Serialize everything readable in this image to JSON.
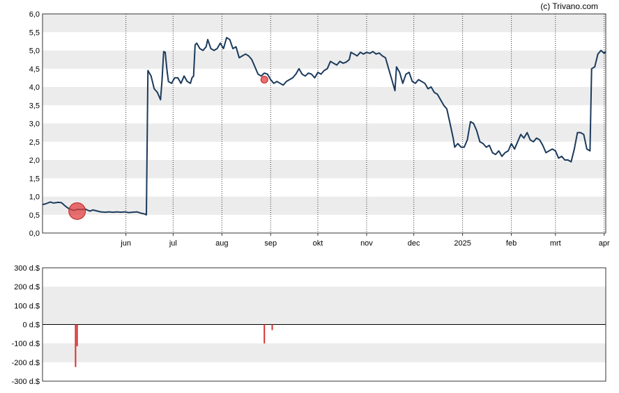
{
  "copyright": "(c) Trivano.com",
  "chart_data": [
    {
      "type": "line",
      "ylim": [
        0,
        6
      ],
      "y_ticks": [
        "0,0",
        "0,5",
        "1,0",
        "1,5",
        "2,0",
        "2,5",
        "3,0",
        "3,5",
        "4,0",
        "4,5",
        "5,0",
        "5,5",
        "6,0"
      ],
      "x_ticks": [
        {
          "label": "jun",
          "date": "2024-06-01"
        },
        {
          "label": "jul",
          "date": "2024-07-01"
        },
        {
          "label": "aug",
          "date": "2024-08-01"
        },
        {
          "label": "sep",
          "date": "2024-09-01"
        },
        {
          "label": "okt",
          "date": "2024-10-01"
        },
        {
          "label": "nov",
          "date": "2024-11-01"
        },
        {
          "label": "dec",
          "date": "2024-12-01"
        },
        {
          "label": "2025",
          "date": "2025-01-01"
        },
        {
          "label": "feb",
          "date": "2025-02-01"
        },
        {
          "label": "mrt",
          "date": "2025-03-01"
        },
        {
          "label": "apr",
          "date": "2025-04-01"
        }
      ],
      "xlim": [
        "2024-04-09",
        "2025-04-02"
      ],
      "grid": "alternating horizontal bands, dotted vertical month lines",
      "line_color": "#1a3a5c",
      "series": [
        {
          "points": [
            [
              "2024-04-09",
              0.78
            ],
            [
              "2024-04-11",
              0.8
            ],
            [
              "2024-04-14",
              0.85
            ],
            [
              "2024-04-16",
              0.82
            ],
            [
              "2024-04-19",
              0.84
            ],
            [
              "2024-04-21",
              0.83
            ],
            [
              "2024-04-24",
              0.72
            ],
            [
              "2024-04-26",
              0.66
            ],
            [
              "2024-04-29",
              0.62
            ],
            [
              "2024-05-01",
              0.65
            ],
            [
              "2024-05-04",
              0.64
            ],
            [
              "2024-05-06",
              0.66
            ],
            [
              "2024-05-09",
              0.6
            ],
            [
              "2024-05-11",
              0.63
            ],
            [
              "2024-05-14",
              0.6
            ],
            [
              "2024-05-16",
              0.58
            ],
            [
              "2024-05-19",
              0.57
            ],
            [
              "2024-05-21",
              0.58
            ],
            [
              "2024-05-24",
              0.57
            ],
            [
              "2024-05-26",
              0.58
            ],
            [
              "2024-05-29",
              0.57
            ],
            [
              "2024-05-31",
              0.58
            ],
            [
              "2024-06-03",
              0.56
            ],
            [
              "2024-06-05",
              0.57
            ],
            [
              "2024-06-08",
              0.58
            ],
            [
              "2024-06-10",
              0.55
            ],
            [
              "2024-06-13",
              0.52
            ],
            [
              "2024-06-14",
              0.5
            ],
            [
              "2024-06-15",
              4.45
            ],
            [
              "2024-06-17",
              4.3
            ],
            [
              "2024-06-19",
              3.95
            ],
            [
              "2024-06-21",
              3.85
            ],
            [
              "2024-06-23",
              3.65
            ],
            [
              "2024-06-24",
              4.2
            ],
            [
              "2024-06-25",
              4.97
            ],
            [
              "2024-06-26",
              4.95
            ],
            [
              "2024-06-27",
              4.5
            ],
            [
              "2024-06-28",
              4.15
            ],
            [
              "2024-06-30",
              4.1
            ],
            [
              "2024-07-02",
              4.25
            ],
            [
              "2024-07-04",
              4.25
            ],
            [
              "2024-07-06",
              4.1
            ],
            [
              "2024-07-08",
              4.3
            ],
            [
              "2024-07-10",
              4.15
            ],
            [
              "2024-07-12",
              4.1
            ],
            [
              "2024-07-13",
              4.25
            ],
            [
              "2024-07-14",
              4.3
            ],
            [
              "2024-07-15",
              5.15
            ],
            [
              "2024-07-16",
              5.2
            ],
            [
              "2024-07-18",
              5.05
            ],
            [
              "2024-07-20",
              5.0
            ],
            [
              "2024-07-22",
              5.1
            ],
            [
              "2024-07-23",
              5.3
            ],
            [
              "2024-07-25",
              5.05
            ],
            [
              "2024-07-27",
              5.0
            ],
            [
              "2024-07-29",
              5.05
            ],
            [
              "2024-07-31",
              5.2
            ],
            [
              "2024-08-02",
              5.05
            ],
            [
              "2024-08-04",
              5.35
            ],
            [
              "2024-08-06",
              5.3
            ],
            [
              "2024-08-08",
              5.05
            ],
            [
              "2024-08-10",
              5.1
            ],
            [
              "2024-08-12",
              4.8
            ],
            [
              "2024-08-14",
              4.85
            ],
            [
              "2024-08-16",
              4.9
            ],
            [
              "2024-08-18",
              4.85
            ],
            [
              "2024-08-20",
              4.75
            ],
            [
              "2024-08-22",
              4.55
            ],
            [
              "2024-08-24",
              4.35
            ],
            [
              "2024-08-26",
              4.3
            ],
            [
              "2024-08-28",
              4.38
            ],
            [
              "2024-08-30",
              4.35
            ],
            [
              "2024-09-01",
              4.2
            ],
            [
              "2024-09-03",
              4.1
            ],
            [
              "2024-09-05",
              4.15
            ],
            [
              "2024-09-07",
              4.1
            ],
            [
              "2024-09-09",
              4.05
            ],
            [
              "2024-09-11",
              4.15
            ],
            [
              "2024-09-13",
              4.2
            ],
            [
              "2024-09-15",
              4.25
            ],
            [
              "2024-09-17",
              4.35
            ],
            [
              "2024-09-19",
              4.5
            ],
            [
              "2024-09-21",
              4.35
            ],
            [
              "2024-09-23",
              4.3
            ],
            [
              "2024-09-25",
              4.38
            ],
            [
              "2024-09-27",
              4.35
            ],
            [
              "2024-09-29",
              4.25
            ],
            [
              "2024-10-01",
              4.4
            ],
            [
              "2024-10-03",
              4.35
            ],
            [
              "2024-10-05",
              4.45
            ],
            [
              "2024-10-07",
              4.5
            ],
            [
              "2024-10-09",
              4.7
            ],
            [
              "2024-10-11",
              4.65
            ],
            [
              "2024-10-13",
              4.6
            ],
            [
              "2024-10-15",
              4.7
            ],
            [
              "2024-10-17",
              4.65
            ],
            [
              "2024-10-19",
              4.68
            ],
            [
              "2024-10-21",
              4.75
            ],
            [
              "2024-10-22",
              4.95
            ],
            [
              "2024-10-24",
              4.9
            ],
            [
              "2024-10-26",
              4.85
            ],
            [
              "2024-10-28",
              4.95
            ],
            [
              "2024-10-30",
              4.9
            ],
            [
              "2024-11-01",
              4.95
            ],
            [
              "2024-11-03",
              4.92
            ],
            [
              "2024-11-05",
              4.97
            ],
            [
              "2024-11-07",
              4.9
            ],
            [
              "2024-11-09",
              4.93
            ],
            [
              "2024-11-11",
              4.85
            ],
            [
              "2024-11-13",
              4.8
            ],
            [
              "2024-11-15",
              4.5
            ],
            [
              "2024-11-17",
              4.2
            ],
            [
              "2024-11-19",
              3.9
            ],
            [
              "2024-11-20",
              4.55
            ],
            [
              "2024-11-22",
              4.4
            ],
            [
              "2024-11-24",
              4.1
            ],
            [
              "2024-11-26",
              4.35
            ],
            [
              "2024-11-28",
              4.4
            ],
            [
              "2024-11-30",
              4.15
            ],
            [
              "2024-12-02",
              4.1
            ],
            [
              "2024-12-04",
              4.2
            ],
            [
              "2024-12-06",
              4.15
            ],
            [
              "2024-12-08",
              4.1
            ],
            [
              "2024-12-10",
              3.95
            ],
            [
              "2024-12-12",
              4.0
            ],
            [
              "2024-12-14",
              3.85
            ],
            [
              "2024-12-16",
              3.8
            ],
            [
              "2024-12-18",
              3.65
            ],
            [
              "2024-12-20",
              3.5
            ],
            [
              "2024-12-22",
              3.4
            ],
            [
              "2024-12-24",
              3.0
            ],
            [
              "2024-12-26",
              2.6
            ],
            [
              "2024-12-27",
              2.35
            ],
            [
              "2024-12-29",
              2.45
            ],
            [
              "2024-12-31",
              2.35
            ],
            [
              "2025-01-02",
              2.35
            ],
            [
              "2025-01-04",
              2.55
            ],
            [
              "2025-01-06",
              3.05
            ],
            [
              "2025-01-08",
              3.0
            ],
            [
              "2025-01-10",
              2.8
            ],
            [
              "2025-01-12",
              2.5
            ],
            [
              "2025-01-14",
              2.45
            ],
            [
              "2025-01-16",
              2.35
            ],
            [
              "2025-01-18",
              2.4
            ],
            [
              "2025-01-20",
              2.2
            ],
            [
              "2025-01-22",
              2.15
            ],
            [
              "2025-01-24",
              2.25
            ],
            [
              "2025-01-26",
              2.1
            ],
            [
              "2025-01-28",
              2.2
            ],
            [
              "2025-01-30",
              2.25
            ],
            [
              "2025-02-01",
              2.45
            ],
            [
              "2025-02-03",
              2.3
            ],
            [
              "2025-02-05",
              2.5
            ],
            [
              "2025-02-07",
              2.7
            ],
            [
              "2025-02-09",
              2.6
            ],
            [
              "2025-02-11",
              2.75
            ],
            [
              "2025-02-13",
              2.55
            ],
            [
              "2025-02-15",
              2.5
            ],
            [
              "2025-02-17",
              2.6
            ],
            [
              "2025-02-19",
              2.55
            ],
            [
              "2025-02-21",
              2.4
            ],
            [
              "2025-02-23",
              2.2
            ],
            [
              "2025-02-25",
              2.25
            ],
            [
              "2025-02-27",
              2.3
            ],
            [
              "2025-03-01",
              2.25
            ],
            [
              "2025-03-03",
              2.05
            ],
            [
              "2025-03-05",
              2.1
            ],
            [
              "2025-03-07",
              2.0
            ],
            [
              "2025-03-09",
              2.0
            ],
            [
              "2025-03-11",
              1.95
            ],
            [
              "2025-03-13",
              2.3
            ],
            [
              "2025-03-15",
              2.75
            ],
            [
              "2025-03-17",
              2.75
            ],
            [
              "2025-03-19",
              2.7
            ],
            [
              "2025-03-21",
              2.3
            ],
            [
              "2025-03-23",
              2.25
            ],
            [
              "2025-03-24",
              4.5
            ],
            [
              "2025-03-26",
              4.55
            ],
            [
              "2025-03-28",
              4.9
            ],
            [
              "2025-03-30",
              5.0
            ],
            [
              "2025-04-01",
              4.92
            ],
            [
              "2025-04-02",
              4.97
            ]
          ]
        }
      ],
      "markers": [
        {
          "date": "2024-05-01",
          "value": 0.6,
          "size": "large",
          "color": "#e04040"
        },
        {
          "date": "2024-08-28",
          "value": 4.2,
          "size": "small",
          "color": "#e04040"
        }
      ]
    },
    {
      "type": "bar",
      "ylim": [
        -300,
        300
      ],
      "y_ticks": [
        "300 d.$",
        "200 d.$",
        "100 d.$",
        "0 d.$",
        "-100 d.$",
        "-200 d.$",
        "-300 d.$"
      ],
      "xlim": [
        "2024-04-09",
        "2025-04-02"
      ],
      "bar_color": "#d83030",
      "series": [
        {
          "points": [
            [
              "2024-04-30",
              -225
            ],
            [
              "2024-05-01",
              -115
            ],
            [
              "2024-08-28",
              -100
            ],
            [
              "2024-09-02",
              -30
            ]
          ]
        }
      ]
    }
  ]
}
